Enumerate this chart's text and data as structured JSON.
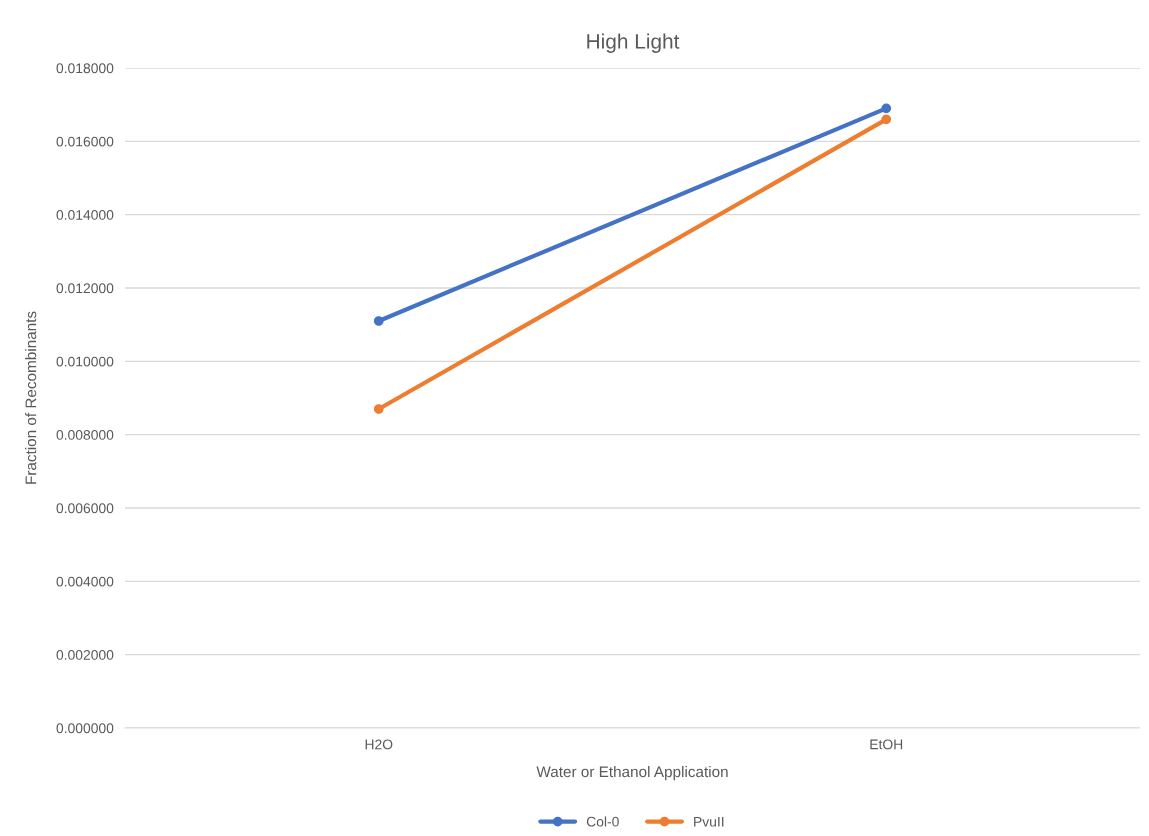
{
  "chart_data": {
    "type": "line",
    "title": "High Light",
    "xlabel": "Water or Ethanol Application",
    "ylabel": "Fraction of Recombinants",
    "categories": [
      "H2O",
      "EtOH"
    ],
    "series": [
      {
        "name": "Col-0",
        "color": "#4472c4",
        "values": [
          0.0111,
          0.0169
        ]
      },
      {
        "name": "PvuII",
        "color": "#ed7d31",
        "values": [
          0.0087,
          0.0166
        ]
      }
    ],
    "ylim": [
      0,
      0.018
    ],
    "yticks": [
      {
        "value": 0,
        "label": "0.000000"
      },
      {
        "value": 0.002,
        "label": "0.002000"
      },
      {
        "value": 0.004,
        "label": "0.004000"
      },
      {
        "value": 0.006,
        "label": "0.006000"
      },
      {
        "value": 0.008,
        "label": "0.008000"
      },
      {
        "value": 0.01,
        "label": "0.010000"
      },
      {
        "value": 0.012,
        "label": "0.012000"
      },
      {
        "value": 0.014,
        "label": "0.014000"
      },
      {
        "value": 0.016,
        "label": "0.016000"
      },
      {
        "value": 0.018,
        "label": "0.018000"
      }
    ],
    "grid": "y",
    "legend": "bottom",
    "marker": "circle",
    "line_style": "solid"
  }
}
